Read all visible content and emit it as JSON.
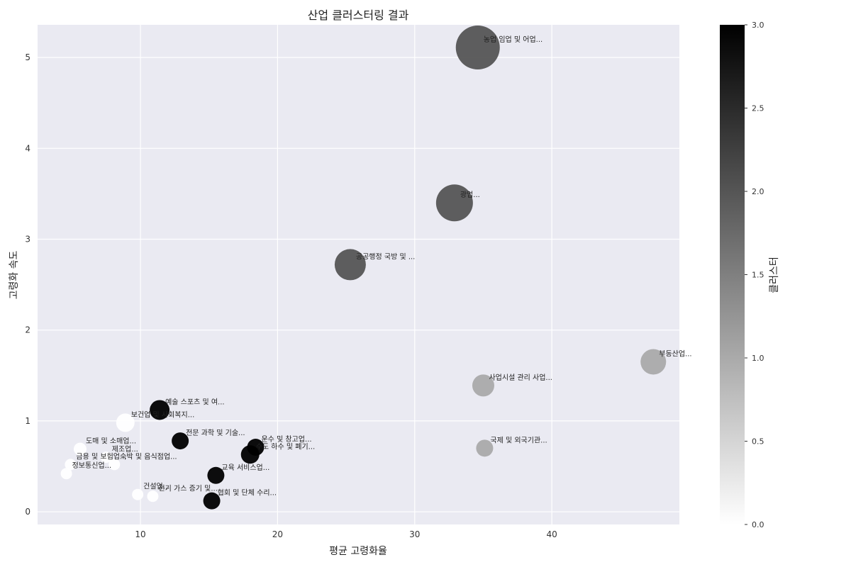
{
  "chart_data": {
    "type": "scatter",
    "title": "산업 클러스터링 결과",
    "xlabel": "평균 고령화율",
    "ylabel": "고령화 속도",
    "xlim": [
      2.5,
      49.3
    ],
    "ylim": [
      -0.14,
      5.36
    ],
    "xticks": [
      10,
      20,
      30,
      40
    ],
    "yticks": [
      0,
      1,
      2,
      3,
      4,
      5
    ],
    "grid": true,
    "colorbar": {
      "label": "클러스터",
      "range": [
        0.0,
        3.0
      ],
      "ticks": [
        "0.0",
        "0.5",
        "1.0",
        "1.5",
        "2.0",
        "2.5",
        "3.0"
      ],
      "colormap": "white-to-black"
    },
    "points": [
      {
        "label": "농업 임업 및 어업...",
        "x": 34.6,
        "y": 5.11,
        "cluster": 2,
        "size": 62
      },
      {
        "label": "광업...",
        "x": 32.9,
        "y": 3.4,
        "cluster": 2,
        "size": 52
      },
      {
        "label": "공공행정 국방 및 ...",
        "x": 25.3,
        "y": 2.72,
        "cluster": 2,
        "size": 44
      },
      {
        "label": "부동산업...",
        "x": 47.4,
        "y": 1.65,
        "cluster": 1,
        "size": 36
      },
      {
        "label": "사업시설 관리 사업...",
        "x": 35.0,
        "y": 1.39,
        "cluster": 1,
        "size": 31
      },
      {
        "label": "국제 및 외국기관...",
        "x": 35.1,
        "y": 0.7,
        "cluster": 1,
        "size": 24
      },
      {
        "label": "예술 스포츠 및 여...",
        "x": 11.4,
        "y": 1.12,
        "cluster": 3,
        "size": 28
      },
      {
        "label": "보건업 및 사회복지...",
        "x": 8.9,
        "y": 0.98,
        "cluster": 0,
        "size": 26
      },
      {
        "label": "전문 과학 및 기술...",
        "x": 12.9,
        "y": 0.78,
        "cluster": 3,
        "size": 24
      },
      {
        "label": "운수 및 창고업...",
        "x": 18.4,
        "y": 0.71,
        "cluster": 3,
        "size": 24
      },
      {
        "label": "수도 하수 및 폐기...",
        "x": 18.0,
        "y": 0.63,
        "cluster": 3,
        "size": 26
      },
      {
        "label": "교육 서비스업...",
        "x": 15.5,
        "y": 0.4,
        "cluster": 3,
        "size": 24
      },
      {
        "label": "협회 및 단체 수리...",
        "x": 15.2,
        "y": 0.12,
        "cluster": 3,
        "size": 24
      },
      {
        "label": "도매 및 소매업...",
        "x": 5.6,
        "y": 0.69,
        "cluster": 0,
        "size": 18
      },
      {
        "label": "제조업...",
        "x": 7.5,
        "y": 0.6,
        "cluster": 0,
        "size": 16
      },
      {
        "label": "숙박 및 음식점업...",
        "x": 8.1,
        "y": 0.52,
        "cluster": 0,
        "size": 16
      },
      {
        "label": "금용 및 보험업...",
        "x": 4.9,
        "y": 0.52,
        "cluster": 0,
        "size": 16
      },
      {
        "label": "정보통신업...",
        "x": 4.6,
        "y": 0.42,
        "cluster": 0,
        "size": 16
      },
      {
        "label": "건설업...",
        "x": 9.8,
        "y": 0.19,
        "cluster": 0,
        "size": 16
      },
      {
        "label": "전기 가스 증기 및...",
        "x": 10.9,
        "y": 0.17,
        "cluster": 0,
        "size": 16
      }
    ]
  }
}
